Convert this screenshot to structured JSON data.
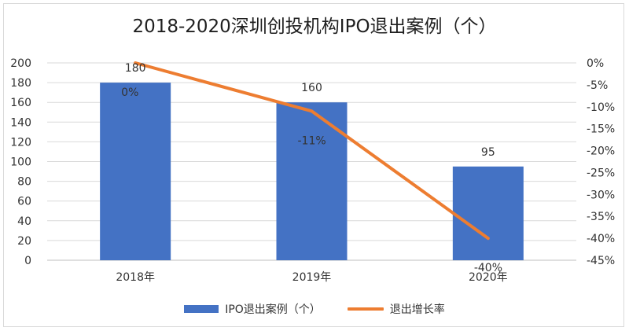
{
  "chart_data": {
    "type": "bar+line",
    "title": "2018-2020深圳创投机构IPO退出案例（个）",
    "categories": [
      "2018年",
      "2019年",
      "2020年"
    ],
    "series": [
      {
        "name": "IPO退出案例（个）",
        "type": "bar",
        "axis": "left",
        "values": [
          180,
          160,
          95
        ],
        "labels": [
          "180",
          "160",
          "95"
        ],
        "color": "#4472c4"
      },
      {
        "name": "退出增长率",
        "type": "line",
        "axis": "right",
        "values": [
          0,
          -11,
          -40
        ],
        "labels": [
          "0%",
          "-11%",
          "-40%"
        ],
        "color": "#ed7d31"
      }
    ],
    "left_axis": {
      "min": 0,
      "max": 200,
      "step": 20
    },
    "right_axis": {
      "min": -45,
      "max": 0,
      "step": 5,
      "unit": "%"
    },
    "legend_position": "bottom",
    "grid": true
  }
}
